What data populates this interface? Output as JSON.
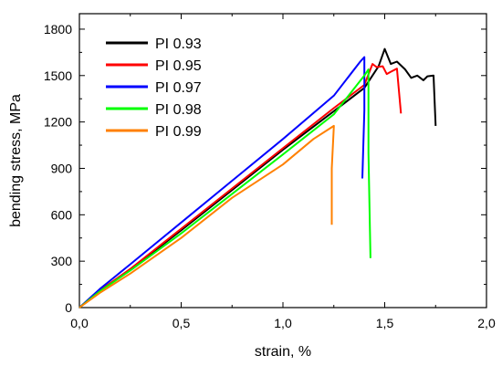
{
  "chart_data": {
    "type": "line",
    "title": "",
    "xlabel": "strain, %",
    "ylabel": "bending stress, MPa",
    "xlim": [
      0.0,
      2.0
    ],
    "ylim": [
      0,
      1900
    ],
    "x_ticks": [
      0.0,
      0.5,
      1.0,
      1.5,
      2.0
    ],
    "x_tick_labels": [
      "0,0",
      "0,5",
      "1,0",
      "1,5",
      "2,0"
    ],
    "y_ticks": [
      0,
      300,
      600,
      900,
      1200,
      1500,
      1800
    ],
    "y_tick_labels": [
      "0",
      "300",
      "600",
      "900",
      "1200",
      "1500",
      "1800"
    ],
    "grid": false,
    "legend_position": "top-left",
    "series": [
      {
        "name": "PI 0.93",
        "color": "#000000",
        "points": [
          [
            0,
            0
          ],
          [
            0.1,
            110
          ],
          [
            0.25,
            245
          ],
          [
            0.5,
            500
          ],
          [
            0.75,
            760
          ],
          [
            1.0,
            1020
          ],
          [
            1.25,
            1270
          ],
          [
            1.4,
            1420
          ],
          [
            1.47,
            1560
          ],
          [
            1.5,
            1672
          ],
          [
            1.53,
            1575
          ],
          [
            1.56,
            1590
          ],
          [
            1.6,
            1540
          ],
          [
            1.63,
            1485
          ],
          [
            1.66,
            1500
          ],
          [
            1.69,
            1470
          ],
          [
            1.71,
            1495
          ],
          [
            1.74,
            1500
          ],
          [
            1.75,
            1175
          ]
        ]
      },
      {
        "name": "PI 0.95",
        "color": "#ff0000",
        "points": [
          [
            0,
            0
          ],
          [
            0.1,
            110
          ],
          [
            0.25,
            250
          ],
          [
            0.5,
            510
          ],
          [
            0.75,
            770
          ],
          [
            1.0,
            1030
          ],
          [
            1.25,
            1290
          ],
          [
            1.4,
            1440
          ],
          [
            1.44,
            1575
          ],
          [
            1.46,
            1555
          ],
          [
            1.49,
            1560
          ],
          [
            1.51,
            1510
          ],
          [
            1.53,
            1525
          ],
          [
            1.56,
            1545
          ],
          [
            1.58,
            1255
          ]
        ]
      },
      {
        "name": "PI 0.97",
        "color": "#0000ff",
        "points": [
          [
            0,
            0
          ],
          [
            0.1,
            120
          ],
          [
            0.25,
            280
          ],
          [
            0.5,
            550
          ],
          [
            0.75,
            820
          ],
          [
            1.0,
            1090
          ],
          [
            1.25,
            1370
          ],
          [
            1.38,
            1590
          ],
          [
            1.4,
            1620
          ],
          [
            1.4,
            1275
          ],
          [
            1.39,
            835
          ]
        ]
      },
      {
        "name": "PI 0.98",
        "color": "#00ff00",
        "points": [
          [
            0,
            0
          ],
          [
            0.1,
            105
          ],
          [
            0.25,
            240
          ],
          [
            0.5,
            480
          ],
          [
            0.75,
            735
          ],
          [
            1.0,
            990
          ],
          [
            1.25,
            1250
          ],
          [
            1.4,
            1500
          ],
          [
            1.42,
            1540
          ],
          [
            1.42,
            1000
          ],
          [
            1.43,
            320
          ]
        ]
      },
      {
        "name": "PI 0.99",
        "color": "#ff8000",
        "points": [
          [
            0,
            0
          ],
          [
            0.1,
            95
          ],
          [
            0.25,
            220
          ],
          [
            0.5,
            450
          ],
          [
            0.75,
            710
          ],
          [
            1.0,
            925
          ],
          [
            1.15,
            1090
          ],
          [
            1.25,
            1175
          ],
          [
            1.24,
            900
          ],
          [
            1.24,
            535
          ]
        ]
      }
    ]
  }
}
